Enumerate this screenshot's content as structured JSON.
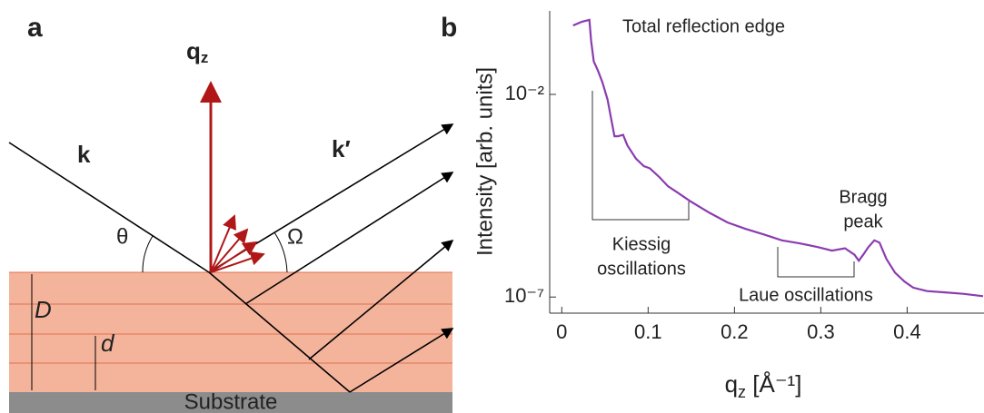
{
  "panel_a": {
    "label": "a",
    "qz_main": "q",
    "qz_sub": "z",
    "k": "k",
    "k_prime": "k′",
    "theta": "θ",
    "omega": "Ω",
    "big_d": "D",
    "small_d": "d",
    "substrate": "Substrate"
  },
  "chart_data": {
    "type": "line",
    "panel_label": "b",
    "y_label": "Intensity [arb. units]",
    "x_label": {
      "main": "q",
      "sub": "z",
      "rest": " [Å⁻¹]"
    },
    "log_y": true,
    "color": "#8a3cb0",
    "xlim": [
      -0.014,
      0.489
    ],
    "ylim": [
      4e-08,
      1.15
    ],
    "xticks": [
      0,
      0.1,
      0.2,
      0.3,
      0.4
    ],
    "yticks": [
      {
        "value": 0.01,
        "label": "10⁻²"
      },
      {
        "value": 1e-07,
        "label": "10⁻⁷"
      }
    ],
    "x": [
      0.013,
      0.023,
      0.032,
      0.034,
      0.037,
      0.042,
      0.047,
      0.053,
      0.057,
      0.061,
      0.065,
      0.071,
      0.076,
      0.086,
      0.095,
      0.102,
      0.113,
      0.123,
      0.134,
      0.149,
      0.171,
      0.192,
      0.213,
      0.234,
      0.255,
      0.276,
      0.297,
      0.313,
      0.328,
      0.339,
      0.344,
      0.349,
      0.355,
      0.362,
      0.368,
      0.376,
      0.386,
      0.397,
      0.407,
      0.423,
      0.444,
      0.465,
      0.488
    ],
    "values": [
      0.5,
      0.62,
      0.69,
      0.21,
      0.065,
      0.038,
      0.02,
      0.0074,
      0.0026,
      0.00093,
      0.00093,
      0.001,
      0.00055,
      0.00026,
      0.00017,
      0.00015,
      9.1e-05,
      5.4e-05,
      3.8e-05,
      2.3e-05,
      1.2e-05,
      6.9e-06,
      4.8e-06,
      3.5e-06,
      2.5e-06,
      2.1e-06,
      1.7e-06,
      1.4e-06,
      1.6e-06,
      1.1e-06,
      7.9e-07,
      1.1e-06,
      1.7e-06,
      2.5e-06,
      2.2e-06,
      8.7e-07,
      4e-07,
      2.4e-07,
      1.7e-07,
      1.4e-07,
      1.3e-07,
      1.2e-07,
      1.05e-07
    ],
    "annotations": {
      "edge": "Total reflection edge",
      "kiessig_1": "Kiessig",
      "kiessig_2": "oscillations",
      "bragg_1": "Bragg",
      "bragg_2": "peak",
      "laue": "Laue oscillations"
    }
  }
}
